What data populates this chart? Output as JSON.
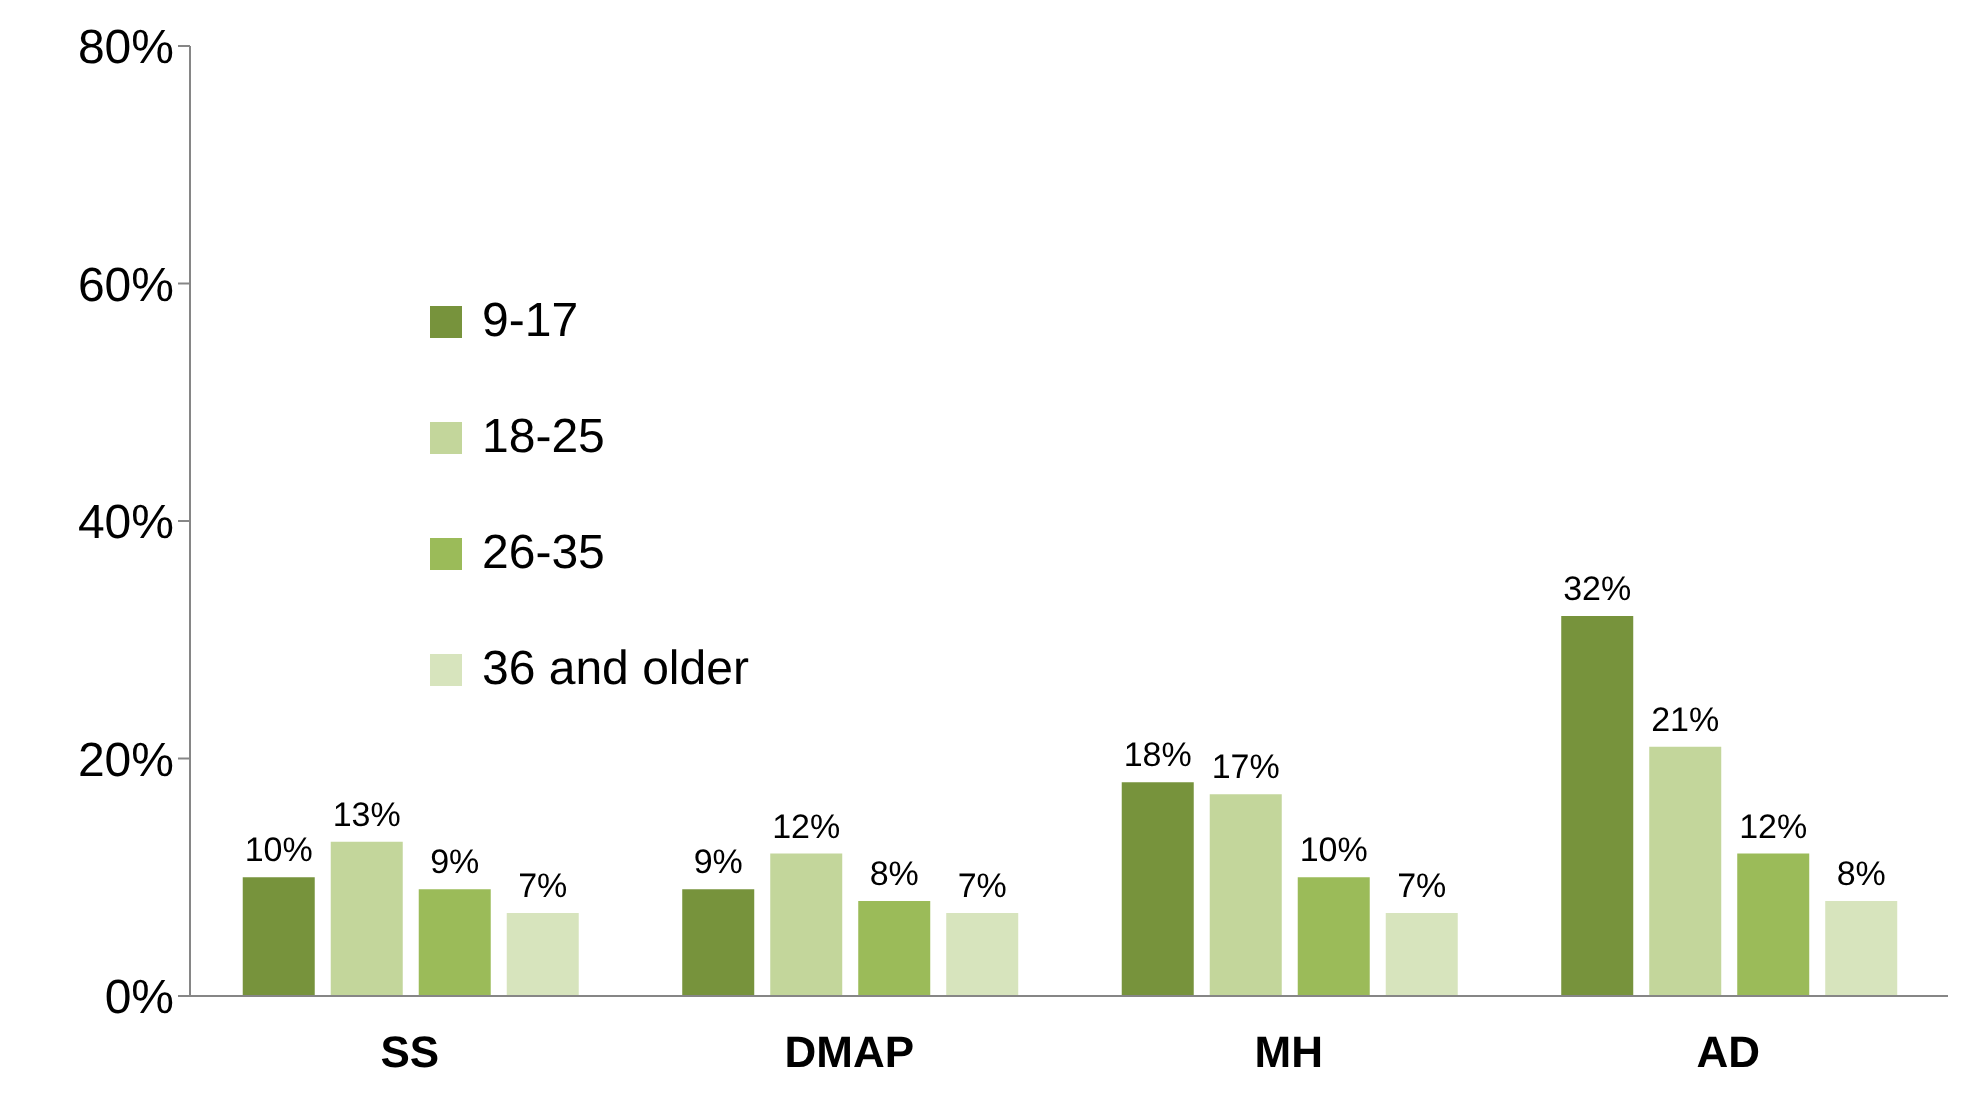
{
  "chart_data": {
    "type": "bar",
    "categories": [
      "SS",
      "DMAP",
      "MH",
      "AD"
    ],
    "series": [
      {
        "name": "9-17",
        "color": "#77933c",
        "values": [
          10,
          9,
          18,
          32
        ],
        "value_labels": [
          "10%",
          "9%",
          "18%",
          "32%"
        ]
      },
      {
        "name": "18-25",
        "color": "#c3d69b",
        "values": [
          13,
          12,
          17,
          21
        ],
        "value_labels": [
          "13%",
          "12%",
          "17%",
          "21%"
        ]
      },
      {
        "name": "26-35",
        "color": "#9bbb59",
        "values": [
          9,
          8,
          10,
          12
        ],
        "value_labels": [
          "9%",
          "8%",
          "10%",
          "12%"
        ]
      },
      {
        "name": "36 and older",
        "color": "#d7e4bd",
        "values": [
          7,
          7,
          7,
          8
        ],
        "value_labels": [
          "7%",
          "7%",
          "7%",
          "8%"
        ]
      }
    ],
    "ylim": [
      0,
      80
    ],
    "yticks": [
      {
        "value": 0,
        "label": "0%"
      },
      {
        "value": 20,
        "label": "20%"
      },
      {
        "value": 40,
        "label": "40%"
      },
      {
        "value": 60,
        "label": "60%"
      },
      {
        "value": 80,
        "label": "80%"
      }
    ],
    "grid": false,
    "legend": "top left"
  }
}
